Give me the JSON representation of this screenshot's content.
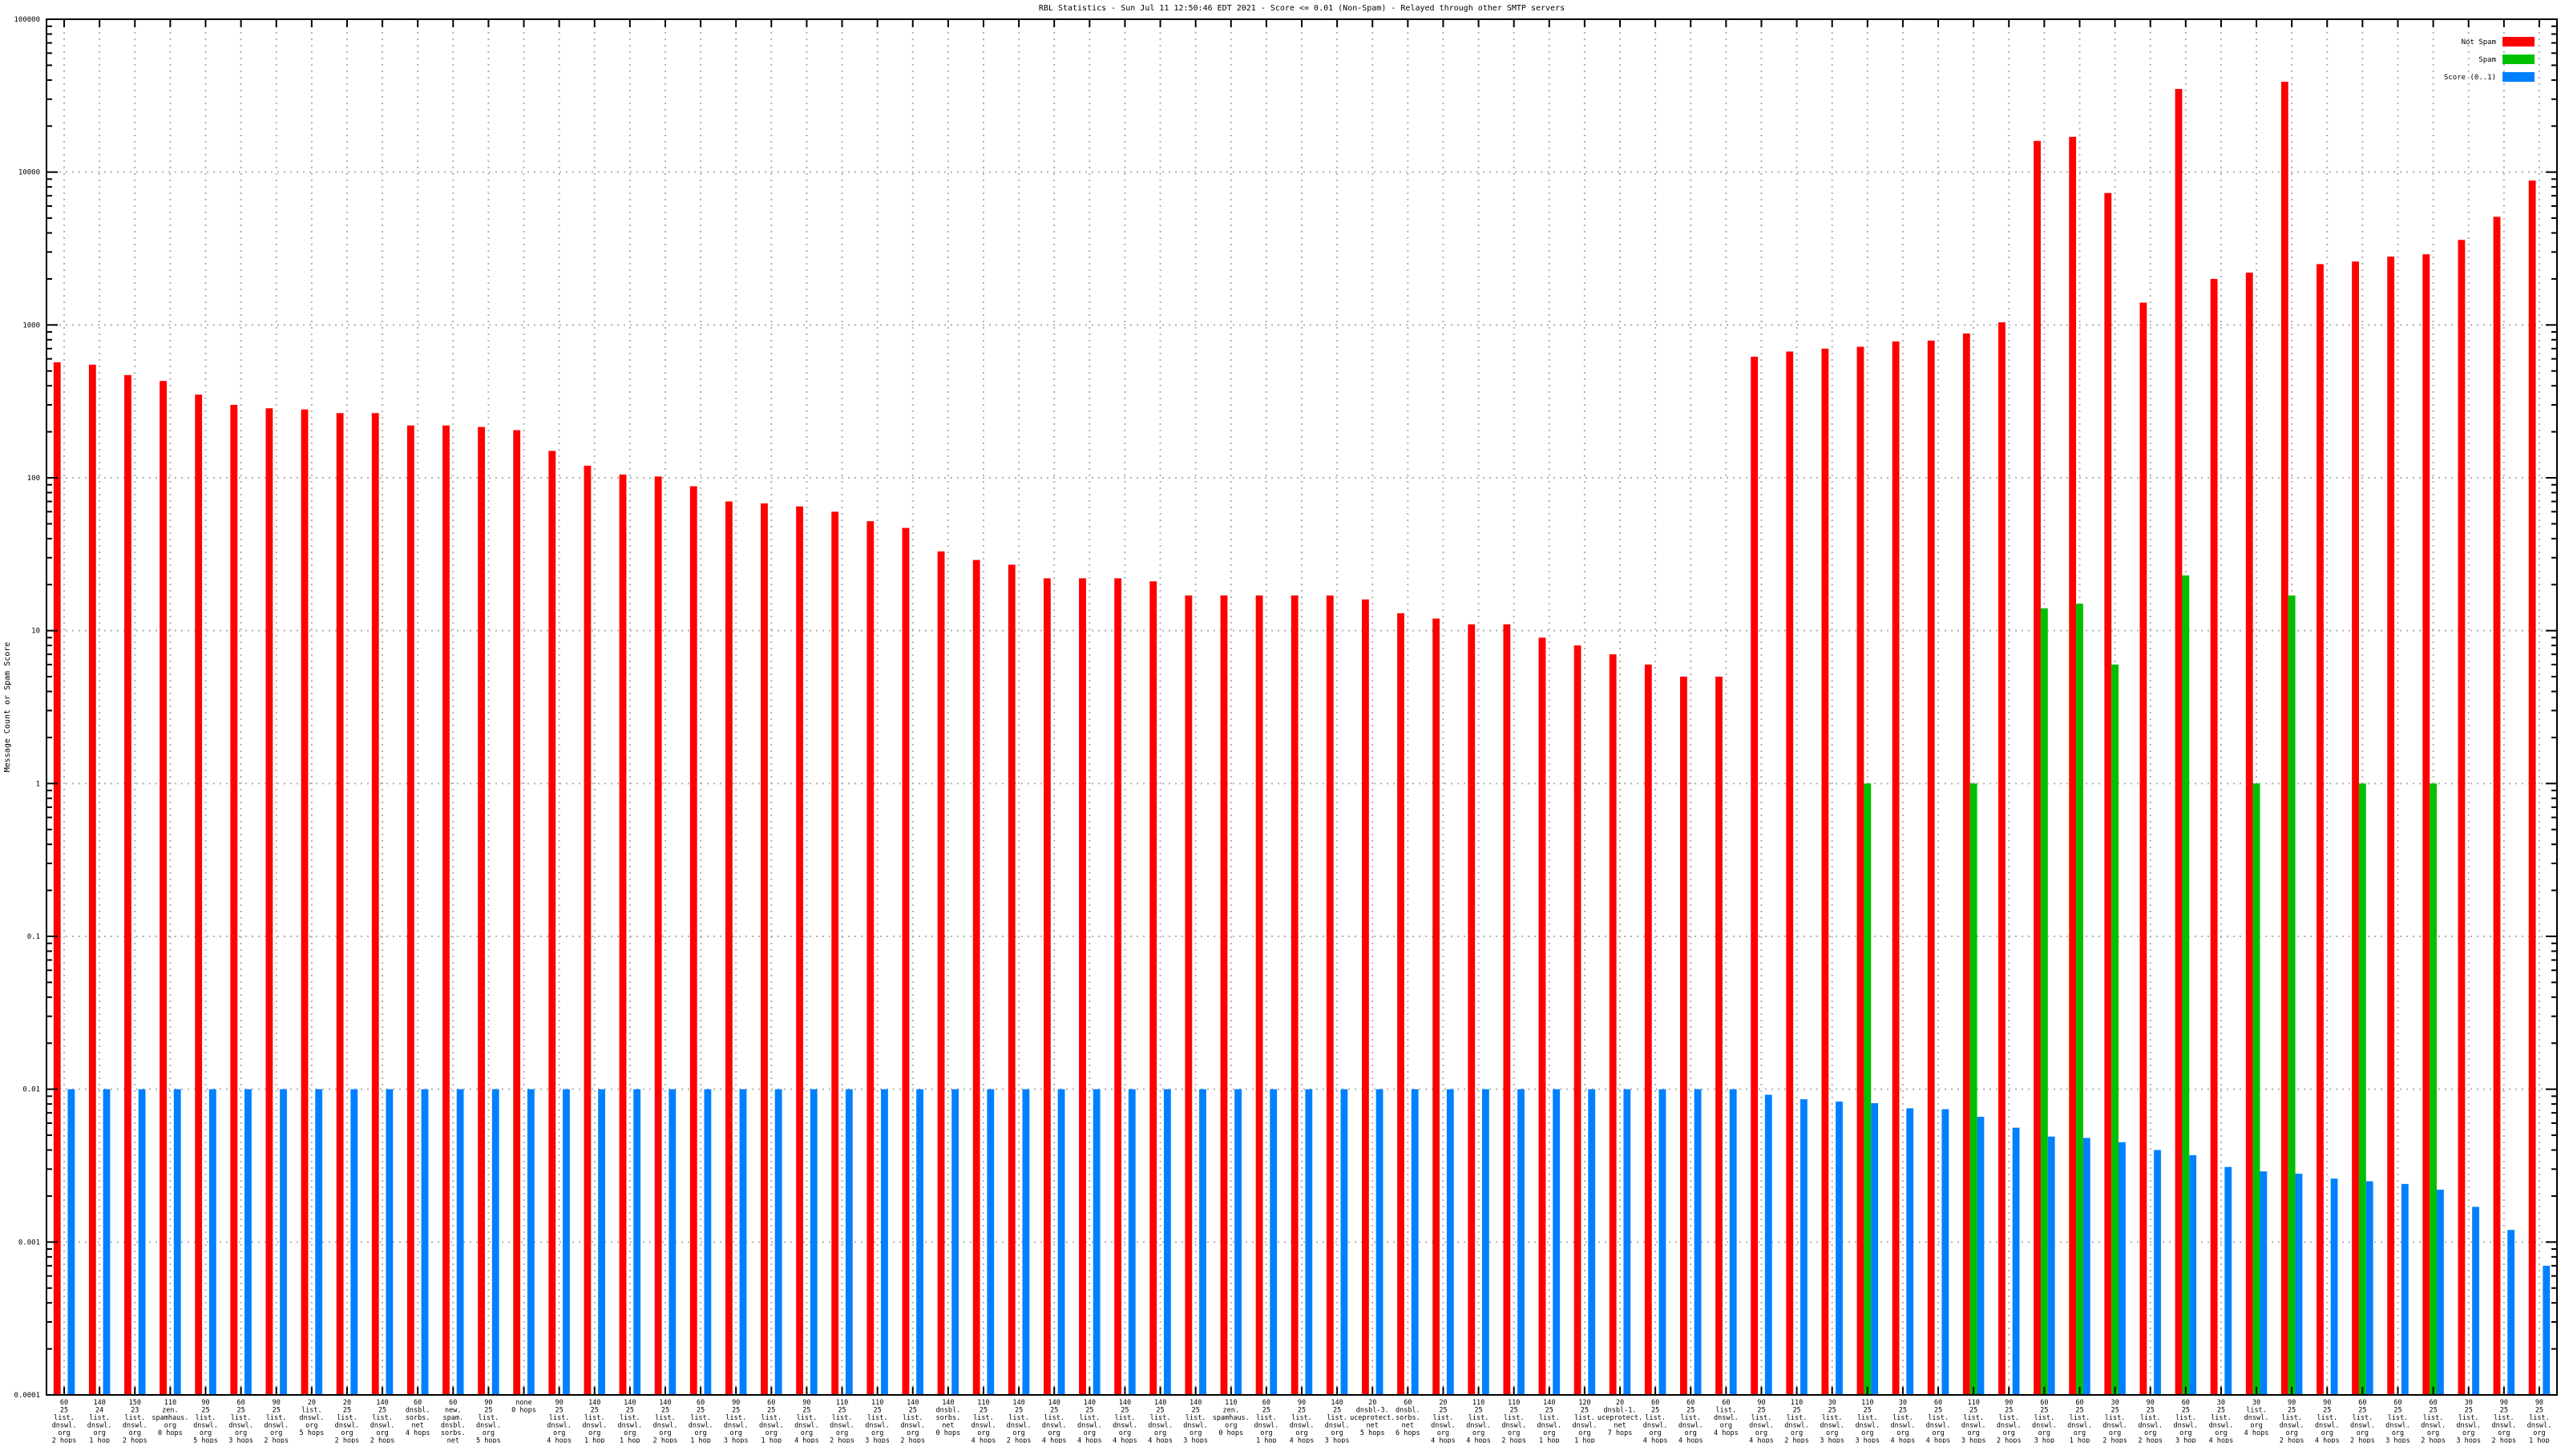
{
  "chart_data": {
    "type": "bar",
    "title": "RBL Statistics - Sun Jul 11 12:50:46 EDT 2021 - Score <= 0.01 (Non-Spam) - Relayed through other SMTP servers",
    "ylabel": "Message Count or Spam Score",
    "xlabel": "",
    "yscale": "log",
    "ylim": [
      0.0001,
      100000
    ],
    "yticks": [
      "0.0001",
      "0.001",
      "0.01",
      "0.1",
      "1",
      "10",
      "100",
      "1000",
      "10000",
      "100000"
    ],
    "grid": true,
    "legend_position": "top-right",
    "colors": {
      "not_spam": "#ff0000",
      "spam": "#00c000",
      "score": "#0080ff"
    },
    "categories": [
      [
        "60",
        "25",
        "list.",
        "dnswl.",
        "org",
        "2 hops"
      ],
      [
        "140",
        "24",
        "list.",
        "dnswl.",
        "org",
        "1 hop"
      ],
      [
        "150",
        "23",
        "list.",
        "dnswl.",
        "org",
        "2 hops"
      ],
      [
        "110",
        "zen.",
        "spamhaus.",
        "org",
        "0 hops"
      ],
      [
        "90",
        "25",
        "list.",
        "dnswl.",
        "org",
        "5 hops"
      ],
      [
        "60",
        "25",
        "list.",
        "dnswl.",
        "org",
        "3 hops"
      ],
      [
        "90",
        "25",
        "list.",
        "dnswl.",
        "org",
        "2 hops"
      ],
      [
        "20",
        "list.",
        "dnswl.",
        "org",
        "5 hops"
      ],
      [
        "20",
        "25",
        "list.",
        "dnswl.",
        "org",
        "2 hops"
      ],
      [
        "140",
        "25",
        "list.",
        "dnswl.",
        "org",
        "2 hops"
      ],
      [
        "60",
        "dnsbl.",
        "sorbs.",
        "net",
        "4 hops"
      ],
      [
        "60",
        "new.",
        "spam.",
        "dnsbl.",
        "sorbs.",
        "net",
        "4 hops"
      ],
      [
        "90",
        "25",
        "list.",
        "dnswl.",
        "org",
        "5 hops"
      ],
      [
        "none",
        "0 hops"
      ],
      [
        "90",
        "25",
        "list.",
        "dnswl.",
        "org",
        "4 hops"
      ],
      [
        "140",
        "25",
        "list.",
        "dnswl.",
        "org",
        "1 hop"
      ],
      [
        "140",
        "25",
        "list.",
        "dnswl.",
        "org",
        "1 hop"
      ],
      [
        "140",
        "25",
        "list.",
        "dnswl.",
        "org",
        "2 hops"
      ],
      [
        "60",
        "25",
        "list.",
        "dnswl.",
        "org",
        "1 hop"
      ],
      [
        "90",
        "25",
        "list.",
        "dnswl.",
        "org",
        "3 hops"
      ],
      [
        "60",
        "25",
        "list.",
        "dnswl.",
        "org",
        "1 hop"
      ],
      [
        "90",
        "25",
        "list.",
        "dnswl.",
        "org",
        "4 hops"
      ],
      [
        "110",
        "25",
        "list.",
        "dnswl.",
        "org",
        "2 hops"
      ],
      [
        "110",
        "25",
        "list.",
        "dnswl.",
        "org",
        "3 hops"
      ],
      [
        "140",
        "25",
        "list.",
        "dnswl.",
        "org",
        "2 hops"
      ],
      [
        "140",
        "dnsbl.",
        "sorbs.",
        "net",
        "0 hops"
      ],
      [
        "110",
        "25",
        "list.",
        "dnswl.",
        "org",
        "4 hops"
      ],
      [
        "140",
        "25",
        "list.",
        "dnswl.",
        "org",
        "2 hops"
      ],
      [
        "140",
        "25",
        "list.",
        "dnswl.",
        "org",
        "4 hops"
      ],
      [
        "140",
        "25",
        "list.",
        "dnswl.",
        "org",
        "4 hops"
      ],
      [
        "140",
        "25",
        "list.",
        "dnswl.",
        "org",
        "4 hops"
      ],
      [
        "140",
        "25",
        "list.",
        "dnswl.",
        "org",
        "4 hops"
      ],
      [
        "140",
        "25",
        "list.",
        "dnswl.",
        "org",
        "3 hops"
      ],
      [
        "110",
        "zen.",
        "spamhaus.",
        "org",
        "0 hops"
      ],
      [
        "60",
        "25",
        "list.",
        "dnswl.",
        "org",
        "1 hop"
      ],
      [
        "90",
        "25",
        "list.",
        "dnswl.",
        "org",
        "4 hops"
      ],
      [
        "140",
        "25",
        "list.",
        "dnswl.",
        "org",
        "3 hops"
      ],
      [
        "20",
        "dnsbl-3.",
        "uceprotect.",
        "net",
        "5 hops"
      ],
      [
        "60",
        "dnsbl.",
        "sorbs.",
        "net",
        "6 hops"
      ],
      [
        "20",
        "25",
        "list.",
        "dnswl.",
        "org",
        "4 hops"
      ],
      [
        "110",
        "25",
        "list.",
        "dnswl.",
        "org",
        "4 hops"
      ],
      [
        "110",
        "25",
        "list.",
        "dnswl.",
        "org",
        "2 hops"
      ],
      [
        "140",
        "25",
        "list.",
        "dnswl.",
        "org",
        "1 hop"
      ],
      [
        "120",
        "25",
        "list.",
        "dnswl.",
        "org",
        "1 hop"
      ],
      [
        "20",
        "dnsbl-1.",
        "uceprotect.",
        "net",
        "7 hops"
      ],
      [
        "60",
        "25",
        "list.",
        "dnswl.",
        "org",
        "4 hops"
      ],
      [
        "60",
        "25",
        "list.",
        "dnswl.",
        "org",
        "4 hops"
      ],
      [
        "60",
        "list.",
        "dnswl.",
        "org",
        "4 hops"
      ],
      [
        "90",
        "25",
        "list.",
        "dnswl.",
        "org",
        "4 hops"
      ],
      [
        "110",
        "25",
        "list.",
        "dnswl.",
        "org",
        "2 hops"
      ],
      [
        "30",
        "25",
        "list.",
        "dnswl.",
        "org",
        "3 hops"
      ],
      [
        "110",
        "25",
        "list.",
        "dnswl.",
        "org",
        "3 hops"
      ],
      [
        "30",
        "25",
        "list.",
        "dnswl.",
        "org",
        "4 hops"
      ],
      [
        "60",
        "25",
        "list.",
        "dnswl.",
        "org",
        "4 hops"
      ],
      [
        "110",
        "25",
        "list.",
        "dnswl.",
        "org",
        "3 hops"
      ],
      [
        "90",
        "25",
        "list.",
        "dnswl.",
        "org",
        "2 hops"
      ],
      [
        "60",
        "25",
        "list.",
        "dnswl.",
        "org",
        "3 hop"
      ],
      [
        "60",
        "25",
        "list.",
        "dnswl.",
        "org",
        "1 hop"
      ],
      [
        "30",
        "25",
        "list.",
        "dnswl.",
        "org",
        "2 hops"
      ],
      [
        "90",
        "25",
        "list.",
        "dnswl.",
        "org",
        "2 hops"
      ],
      [
        "60",
        "25",
        "list.",
        "dnswl.",
        "org",
        "3 hop"
      ],
      [
        "30",
        "25",
        "list.",
        "dnswl.",
        "org",
        "4 hops"
      ],
      [
        "30",
        "list.",
        "dnswl.",
        "org",
        "4 hops"
      ],
      [
        "90",
        "25",
        "list.",
        "dnswl.",
        "org",
        "2 hops"
      ],
      [
        "90",
        "25",
        "list.",
        "dnswl.",
        "org",
        "4 hops"
      ],
      [
        "60",
        "25",
        "list.",
        "dnswl.",
        "org",
        "2 hops"
      ],
      [
        "60",
        "25",
        "list.",
        "dnswl.",
        "org",
        "3 hops"
      ],
      [
        "60",
        "25",
        "list.",
        "dnswl.",
        "org",
        "2 hops"
      ],
      [
        "30",
        "25",
        "list.",
        "dnswl.",
        "org",
        "3 hops"
      ],
      [
        "90",
        "25",
        "list.",
        "dnswl.",
        "org",
        "2 hops"
      ],
      [
        "90",
        "25",
        "list.",
        "dnswl.",
        "org",
        "1 hop"
      ]
    ],
    "series": [
      {
        "name": "Not Spam",
        "values": [
          570,
          550,
          470,
          430,
          350,
          300,
          285,
          280,
          265,
          265,
          220,
          220,
          215,
          205,
          150,
          120,
          105,
          102,
          88,
          70,
          68,
          65,
          60,
          52,
          47,
          33,
          29,
          27,
          22,
          22,
          22,
          21,
          17,
          17,
          17,
          17,
          17,
          16,
          13,
          12,
          11,
          11,
          9,
          8,
          7,
          6,
          5,
          5,
          620,
          670,
          700,
          720,
          780,
          790,
          880,
          1040,
          16000,
          17000,
          7300,
          1400,
          35000,
          2000,
          2200,
          39000,
          2500,
          2600,
          2800,
          2900,
          3600,
          5100,
          8800
        ]
      },
      {
        "name": "Spam",
        "values": [
          0,
          0,
          0,
          0,
          0,
          0,
          0,
          0,
          0,
          0,
          0,
          0,
          0,
          0,
          0,
          0,
          0,
          0,
          0,
          0,
          0,
          0,
          0,
          0,
          0,
          0,
          0,
          0,
          0,
          0,
          0,
          0,
          0,
          0,
          0,
          0,
          0,
          0,
          0,
          0,
          0,
          0,
          0,
          0,
          0,
          0,
          0,
          0,
          0,
          0,
          0,
          1,
          0,
          0,
          1,
          0,
          14,
          15,
          6,
          0,
          23,
          0,
          1,
          17,
          0,
          1,
          0,
          1,
          0,
          0,
          0
        ]
      },
      {
        "name": "Score (0..1)",
        "values": [
          0.01,
          0.01,
          0.01,
          0.01,
          0.01,
          0.01,
          0.01,
          0.01,
          0.01,
          0.01,
          0.01,
          0.01,
          0.01,
          0.01,
          0.01,
          0.01,
          0.01,
          0.01,
          0.01,
          0.01,
          0.01,
          0.01,
          0.01,
          0.01,
          0.01,
          0.01,
          0.01,
          0.01,
          0.01,
          0.01,
          0.01,
          0.01,
          0.01,
          0.01,
          0.01,
          0.01,
          0.01,
          0.01,
          0.01,
          0.01,
          0.01,
          0.01,
          0.01,
          0.01,
          0.01,
          0.01,
          0.01,
          0.01,
          0.0092,
          0.0086,
          0.0083,
          0.0081,
          0.0075,
          0.0074,
          0.0066,
          0.0056,
          0.0049,
          0.0048,
          0.0045,
          0.004,
          0.0037,
          0.0031,
          0.0029,
          0.0028,
          0.0026,
          0.0025,
          0.0024,
          0.0022,
          0.0017,
          0.0012,
          0.0007
        ]
      }
    ]
  }
}
